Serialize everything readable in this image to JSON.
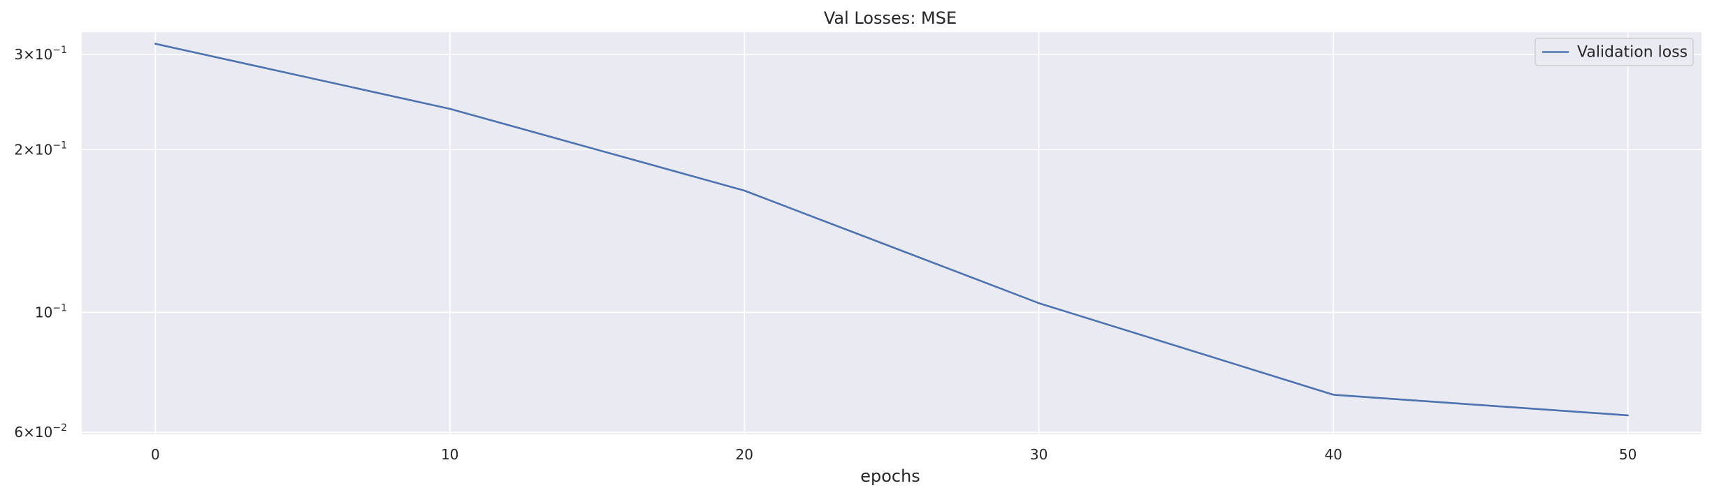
{
  "chart_data": {
    "type": "line",
    "title": "Val Losses:  MSE",
    "xlabel": "epochs",
    "ylabel": "",
    "yscale": "log",
    "xlim": [
      -2.5,
      52.5
    ],
    "ylim": [
      0.0595,
      0.33
    ],
    "grid": true,
    "legend_position": "top-right",
    "x_ticks": [
      0,
      10,
      20,
      30,
      40,
      50
    ],
    "y_ticks": [
      {
        "value": 0.3,
        "mantissa": "3",
        "base": "10",
        "exp": "−1"
      },
      {
        "value": 0.2,
        "mantissa": "2",
        "base": "10",
        "exp": "−1"
      },
      {
        "value": 0.1,
        "mantissa": "",
        "base": "10",
        "exp": "−1"
      },
      {
        "value": 0.06,
        "mantissa": "6",
        "base": "10",
        "exp": "−2"
      }
    ],
    "series": [
      {
        "name": "Validation loss",
        "color": "#4c72b0",
        "x": [
          0,
          10,
          20,
          30,
          40,
          50
        ],
        "y": [
          0.314,
          0.238,
          0.168,
          0.104,
          0.0704,
          0.0645
        ]
      }
    ],
    "colors": {
      "plot_background": "#eaeaf2",
      "grid": "#ffffff",
      "text": "#262626"
    }
  }
}
